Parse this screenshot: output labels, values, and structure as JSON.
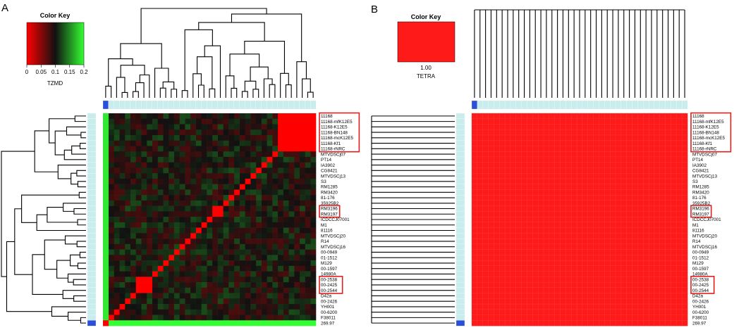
{
  "chart_data": [
    {
      "type": "heatmap",
      "panel": "A",
      "metric": "TZMD",
      "color_key": {
        "title": "Color Key",
        "label": "TZMD",
        "ticks": [
          "0",
          "0.05",
          "0.1",
          "0.15",
          "0.2"
        ],
        "range": [
          0,
          0.2
        ],
        "colors": [
          "#ff0000",
          "#111111",
          "#33ff33"
        ]
      },
      "rows": [
        "11168",
        "11168-mfK12E5",
        "11168-K12E5",
        "11168-BN148",
        "11168-mcK12E5",
        "11168-Kf1",
        "11168-rNRC",
        "MTVDSCj07",
        "PT14",
        "IA3902",
        "CG8421",
        "MTVDSCj13",
        "S3",
        "RM1285",
        "RM3420",
        "81-176",
        "35925B2",
        "RM3196",
        "RM3197",
        "ICDCCJ07001",
        "M1",
        "81116",
        "MTVDSCj20",
        "R14",
        "MTVDSCj16",
        "00-0949",
        "01-1512",
        "M129",
        "00-1597",
        "14980A",
        "00-2538",
        "00-2425",
        "00-2544",
        "D42a",
        "00-2426",
        "YH001",
        "00-6200",
        "F38011",
        "269.97"
      ],
      "highlighted_groups": [
        [
          "11168",
          "11168-mfK12E5",
          "11168-K12E5",
          "11168-BN148",
          "11168-mcK12E5",
          "11168-Kf1",
          "11168-rNRC"
        ],
        [
          "RM3196",
          "RM3197"
        ],
        [
          "00-2538",
          "00-2425",
          "00-2544"
        ]
      ],
      "diagonal_value": 0,
      "near_zero_blocks": [
        {
          "members": [
            "11168",
            "11168-mfK12E5",
            "11168-K12E5",
            "11168-BN148",
            "11168-mcK12E5",
            "11168-Kf1",
            "11168-rNRC"
          ],
          "value": 0.0
        },
        {
          "members": [
            "RM3196",
            "RM3197"
          ],
          "value": 0.0
        },
        {
          "members": [
            "00-2538",
            "00-2425",
            "00-2544"
          ],
          "value": 0.0
        }
      ],
      "typical_offdiagonal_value": 0.1,
      "outlier_row": {
        "name": "269.97",
        "value": 0.2
      }
    },
    {
      "type": "heatmap",
      "panel": "B",
      "metric": "TETRA",
      "color_key": {
        "title": "Color Key",
        "label": "TETRA",
        "ticks": [
          "1.00"
        ],
        "range": [
          1,
          1
        ],
        "colors": [
          "#ff1a1a"
        ]
      },
      "rows": [
        "11168",
        "11168-mfK12E5",
        "11168-K12E5",
        "11168-BN148",
        "11168-mcK12E5",
        "11168-Kf1",
        "11168-rNRC",
        "MTVDSCj07",
        "PT14",
        "IA3902",
        "CG8421",
        "MTVDSCj13",
        "S3",
        "RM1285",
        "RM3420",
        "81-176",
        "35925B2",
        "RM3196",
        "RM3197",
        "ICDCCJ07001",
        "M1",
        "81116",
        "MTVDSCj20",
        "R14",
        "MTVDSCj16",
        "00-0949",
        "01-1512",
        "M129",
        "00-1597",
        "14980A",
        "00-2538",
        "00-2425",
        "00-2544",
        "D42a",
        "00-2426",
        "YH001",
        "00-6200",
        "F38011",
        "269.97"
      ],
      "highlighted_groups": [
        [
          "11168",
          "11168-mfK12E5",
          "11168-K12E5",
          "11168-BN148",
          "11168-mcK12E5",
          "11168-Kf1",
          "11168-rNRC"
        ],
        [
          "RM3196",
          "RM3197"
        ],
        [
          "00-2538",
          "00-2425",
          "00-2544"
        ]
      ],
      "all_values": 1.0
    }
  ]
}
